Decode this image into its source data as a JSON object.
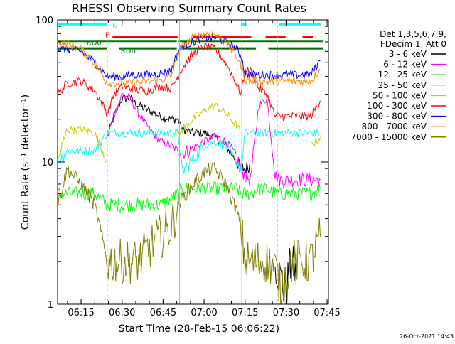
{
  "chart_data": {
    "type": "line",
    "title": "RHESSI Observing Summary Count Rates",
    "xlabel": "Start Time (28-Feb-15 06:06:22)",
    "ylabel": "Count Rate (s⁻¹ detector⁻¹)",
    "x_unit": "minutes after 06:00 UT",
    "xlim": [
      6.4,
      105.5
    ],
    "ylim": [
      1,
      100
    ],
    "yscale": "log",
    "x_ticks": [
      {
        "x": 15,
        "label": "06:15"
      },
      {
        "x": 30,
        "label": "06:30"
      },
      {
        "x": 45,
        "label": "06:45"
      },
      {
        "x": 60,
        "label": "07:00"
      },
      {
        "x": 75,
        "label": "07:15"
      },
      {
        "x": 90,
        "label": "07:30"
      },
      {
        "x": 105,
        "label": "07:45"
      }
    ],
    "y_ticks": [
      {
        "y": 1,
        "label": "1"
      },
      {
        "y": 10,
        "label": "10"
      },
      {
        "y": 100,
        "label": "100"
      }
    ],
    "grid": false,
    "legend_position": "right",
    "legend_header": [
      "Det 1,3,5,6,7,9,",
      "FDecim 1, Att 0"
    ],
    "timestamp": "26-Oct-2021 14:43",
    "flag_labels": [
      {
        "text": "N",
        "x": 26.5,
        "y": 91,
        "color": "#00ffff"
      },
      {
        "text": "F",
        "x": 23.8,
        "y": 79,
        "color": "#ff0000"
      },
      {
        "text": "RD0",
        "x": 17,
        "y": 69.5,
        "color": "#007700"
      },
      {
        "text": "RD0",
        "x": 29.5,
        "y": 61,
        "color": "#007700"
      }
    ],
    "flag_bars": [
      {
        "color": "#00ffff",
        "segments": [
          [
            6.4,
            24.6
          ],
          [
            73.5,
            75.5
          ],
          [
            87.3,
            102.7
          ]
        ],
        "y": 93
      },
      {
        "color": "#ff0000",
        "segments": [
          [
            26.5,
            50.3
          ],
          [
            55.8,
            77.3
          ],
          [
            82.5,
            89.8
          ],
          [
            96,
            99.8
          ]
        ],
        "y": 75.5
      },
      {
        "color": "#007700",
        "segments": [
          [
            6.4,
            27.5
          ],
          [
            27.5,
            50
          ],
          [
            50.7,
            103.5
          ]
        ],
        "y": 71
      },
      {
        "color": "#006600",
        "segments": [
          [
            6.4,
            24.6
          ],
          [
            29,
            50
          ],
          [
            52,
            79
          ],
          [
            83.5,
            103.5
          ]
        ],
        "y": 63
      }
    ],
    "night_boundaries": [
      {
        "x": 24.6,
        "style": "dashed"
      },
      {
        "x": 51.0,
        "style": "solid"
      },
      {
        "x": 73.8,
        "style": "solid"
      },
      {
        "x": 86.8,
        "style": "dashed"
      },
      {
        "x": 102.8,
        "style": "dashed"
      }
    ],
    "series": [
      {
        "name": "3 - 6 keV",
        "color": "#000000",
        "x": [
          6.4,
          10,
          15,
          20,
          24.6,
          27,
          30,
          33,
          36,
          40,
          44,
          48,
          50.5,
          52,
          56,
          60,
          64,
          68,
          72,
          73.5,
          75,
          77,
          80,
          83,
          86,
          88,
          90,
          92,
          94,
          96,
          99,
          102.5
        ],
        "y": [
          null,
          null,
          null,
          null,
          15,
          21,
          28,
          28,
          25,
          23,
          21,
          20,
          20,
          17,
          16,
          16,
          15,
          13,
          10,
          9,
          9,
          9.5,
          null,
          null,
          2,
          1.5,
          1.3,
          2,
          1.5,
          null,
          null,
          null
        ]
      },
      {
        "name": "6 - 12 keV",
        "color": "#ff00ff",
        "x": [
          6.4,
          10,
          15,
          20,
          24.6,
          27,
          30,
          33,
          36,
          40,
          44,
          48,
          50.5,
          52,
          56,
          60,
          64,
          68,
          72,
          73.5,
          75,
          77,
          80,
          83,
          86,
          88,
          90,
          92,
          94,
          96,
          99,
          102.5
        ],
        "y": [
          null,
          null,
          null,
          null,
          15,
          21,
          30,
          28,
          22,
          17,
          14,
          13,
          12,
          11.5,
          12.5,
          14,
          15,
          14,
          11,
          9,
          8,
          7.5,
          25,
          28,
          8,
          7.5,
          7.5,
          7.5,
          7.5,
          7.5,
          7.5,
          7.5
        ]
      },
      {
        "name": "12 - 25 keV",
        "color": "#00ff00",
        "x": [
          6.4,
          10,
          15,
          20,
          24.6,
          27,
          30,
          33,
          36,
          40,
          44,
          48,
          50.5,
          52,
          56,
          60,
          64,
          68,
          72,
          73.5,
          75,
          77,
          80,
          83,
          86,
          88,
          90,
          92,
          94,
          96,
          99,
          102.5
        ],
        "y": [
          6,
          6,
          6,
          6,
          5,
          5,
          5,
          5,
          5,
          5,
          5,
          5.5,
          6,
          6.5,
          6.5,
          6.5,
          6.5,
          6.5,
          6.5,
          6,
          6,
          6,
          6.5,
          6.5,
          6,
          6,
          6,
          6,
          6,
          6,
          6,
          6.5
        ]
      },
      {
        "name": "25 - 50 keV",
        "color": "#00ffff",
        "x": [
          6.4,
          10,
          15,
          20,
          24.6,
          27,
          30,
          33,
          36,
          40,
          44,
          48,
          50.5,
          52,
          56,
          60,
          64,
          68,
          72,
          73.5,
          75,
          77,
          80,
          83,
          86,
          88,
          90,
          92,
          94,
          96,
          99,
          102.5
        ],
        "y": [
          10,
          12,
          12,
          12,
          16,
          16,
          16,
          16,
          16,
          16,
          16,
          16,
          16,
          8.5,
          10.5,
          13,
          14,
          13,
          10,
          9,
          16,
          16,
          16,
          16,
          16,
          16,
          16,
          16,
          16,
          16,
          16,
          16
        ]
      },
      {
        "name": "50 - 100 keV",
        "color": "#cccc00",
        "x": [
          6.4,
          10,
          15,
          20,
          24.6,
          27,
          30,
          33,
          36,
          40,
          44,
          48,
          50.5,
          52,
          56,
          60,
          64,
          68,
          72,
          73.5,
          75,
          77,
          80,
          83,
          86,
          88,
          90,
          92,
          94,
          96,
          99,
          102.5
        ],
        "y": [
          10,
          17,
          17,
          16,
          10,
          null,
          null,
          null,
          null,
          null,
          null,
          null,
          15,
          17,
          20,
          23,
          25,
          22,
          18,
          16,
          null,
          null,
          null,
          null,
          null,
          null,
          null,
          null,
          null,
          null,
          13,
          15
        ]
      },
      {
        "name": "100 - 300 keV",
        "color": "#ff0000",
        "x": [
          6.4,
          10,
          15,
          20,
          24.6,
          27,
          30,
          33,
          36,
          40,
          44,
          48,
          50.5,
          52,
          56,
          60,
          64,
          68,
          72,
          73.5,
          75,
          77,
          80,
          83,
          86,
          88,
          90,
          92,
          94,
          96,
          99,
          102.5
        ],
        "y": [
          30,
          36,
          37,
          32,
          22,
          30,
          34,
          33,
          32,
          32,
          34,
          33,
          40,
          46,
          58,
          65,
          62,
          50,
          35,
          30,
          44,
          44,
          33,
          30,
          21,
          21,
          21,
          21,
          21,
          21,
          21,
          27
        ]
      },
      {
        "name": "300 - 800 keV",
        "color": "#0000ff",
        "x": [
          6.4,
          10,
          15,
          20,
          24.6,
          27,
          30,
          33,
          36,
          40,
          44,
          48,
          50.5,
          52,
          56,
          60,
          64,
          68,
          72,
          73.5,
          75,
          77,
          80,
          83,
          86,
          88,
          90,
          92,
          94,
          96,
          99,
          102.5
        ],
        "y": [
          62,
          62,
          60,
          50,
          40,
          40,
          40,
          41,
          41,
          41,
          42,
          44,
          60,
          65,
          70,
          75,
          75,
          70,
          62,
          56,
          42,
          41,
          41,
          41,
          41,
          41,
          41,
          41,
          41,
          41,
          41,
          52
        ]
      },
      {
        "name": "800 - 7000 keV",
        "color": "#ff8800",
        "x": [
          6.4,
          10,
          15,
          20,
          24.6,
          27,
          30,
          33,
          36,
          40,
          44,
          48,
          50.5,
          52,
          56,
          60,
          64,
          68,
          72,
          73.5,
          75,
          77,
          80,
          83,
          86,
          88,
          90,
          92,
          94,
          96,
          99,
          102.5
        ],
        "y": [
          70,
          68,
          62,
          50,
          36,
          36,
          36,
          36,
          36,
          37,
          38,
          40,
          57,
          65,
          75,
          80,
          79,
          70,
          55,
          48,
          38,
          37,
          37,
          37,
          37,
          37,
          37,
          37,
          37,
          37,
          37,
          45
        ]
      },
      {
        "name": "7000 - 15000 keV",
        "color": "#808000",
        "x": [
          6.4,
          10,
          15,
          20,
          24.6,
          27,
          30,
          33,
          36,
          40,
          44,
          48,
          50.5,
          52,
          56,
          60,
          64,
          68,
          72,
          73.5,
          75,
          77,
          80,
          83,
          86,
          88,
          90,
          92,
          94,
          96,
          99,
          102.5
        ],
        "y": [
          5,
          9,
          7,
          5,
          2,
          2,
          2,
          2,
          2,
          2.5,
          3,
          3.5,
          5,
          5.5,
          7,
          8.5,
          9,
          7,
          4.5,
          3.5,
          2,
          2,
          2,
          2,
          1.8,
          1.3,
          1.6,
          2,
          2,
          2,
          2,
          3
        ]
      }
    ]
  }
}
